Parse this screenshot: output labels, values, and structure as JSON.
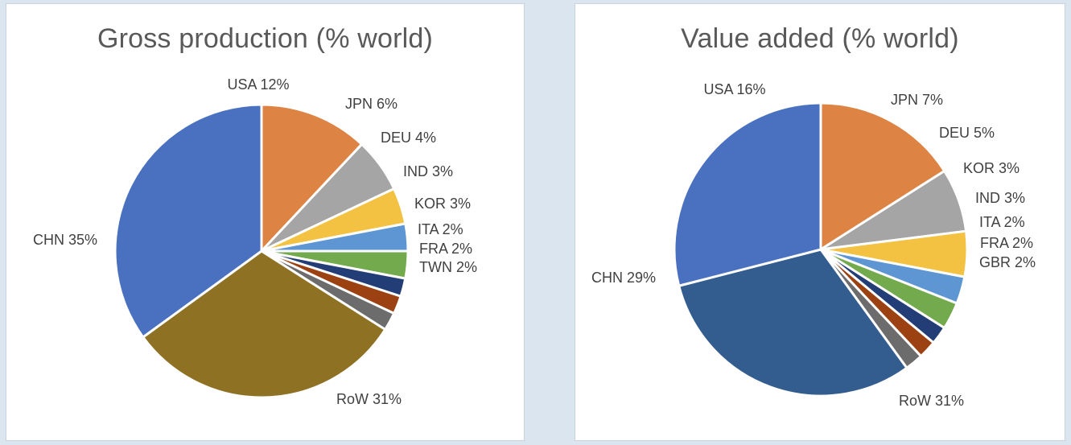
{
  "chart_data": [
    {
      "type": "pie",
      "title": "Gross production  (% world)",
      "slices": [
        {
          "name": "USA",
          "label": "USA 12%",
          "value": 12,
          "color": "#dd8445"
        },
        {
          "name": "JPN",
          "label": "JPN 6%",
          "value": 6,
          "color": "#a5a5a5"
        },
        {
          "name": "DEU",
          "label": "DEU 4%",
          "value": 4,
          "color": "#f4c242"
        },
        {
          "name": "IND",
          "label": "IND 3%",
          "value": 3,
          "color": "#5e96d4"
        },
        {
          "name": "KOR",
          "label": "KOR 3%",
          "value": 3,
          "color": "#72aa4d"
        },
        {
          "name": "ITA",
          "label": "ITA 2%",
          "value": 2,
          "color": "#233d76"
        },
        {
          "name": "FRA",
          "label": "FRA 2%",
          "value": 2,
          "color": "#9b4112"
        },
        {
          "name": "TWN",
          "label": "TWN 2%",
          "value": 2,
          "color": "#6c6c6c"
        },
        {
          "name": "RoW",
          "label": "RoW 31%",
          "value": 31,
          "color": "#8f7123"
        },
        {
          "name": "CHN",
          "label": "CHN 35%",
          "value": 35,
          "color": "#4a71bf"
        }
      ]
    },
    {
      "type": "pie",
      "title": "Value added (% world)",
      "slices": [
        {
          "name": "USA",
          "label": "USA 16%",
          "value": 16,
          "color": "#dd8445"
        },
        {
          "name": "JPN",
          "label": "JPN 7%",
          "value": 7,
          "color": "#a5a5a5"
        },
        {
          "name": "DEU",
          "label": "DEU 5%",
          "value": 5,
          "color": "#f4c242"
        },
        {
          "name": "KOR",
          "label": "KOR 3%",
          "value": 3,
          "color": "#5e96d4"
        },
        {
          "name": "IND",
          "label": "IND 3%",
          "value": 3,
          "color": "#72aa4d"
        },
        {
          "name": "ITA",
          "label": "ITA 2%",
          "value": 2,
          "color": "#233d76"
        },
        {
          "name": "FRA",
          "label": "FRA 2%",
          "value": 2,
          "color": "#9b4112"
        },
        {
          "name": "GBR",
          "label": "GBR 2%",
          "value": 2,
          "color": "#6c6c6c"
        },
        {
          "name": "RoW",
          "label": "RoW 31%",
          "value": 31,
          "color": "#335d8f"
        },
        {
          "name": "CHN",
          "label": "CHN 29%",
          "value": 29,
          "color": "#4a71bf"
        }
      ]
    }
  ]
}
